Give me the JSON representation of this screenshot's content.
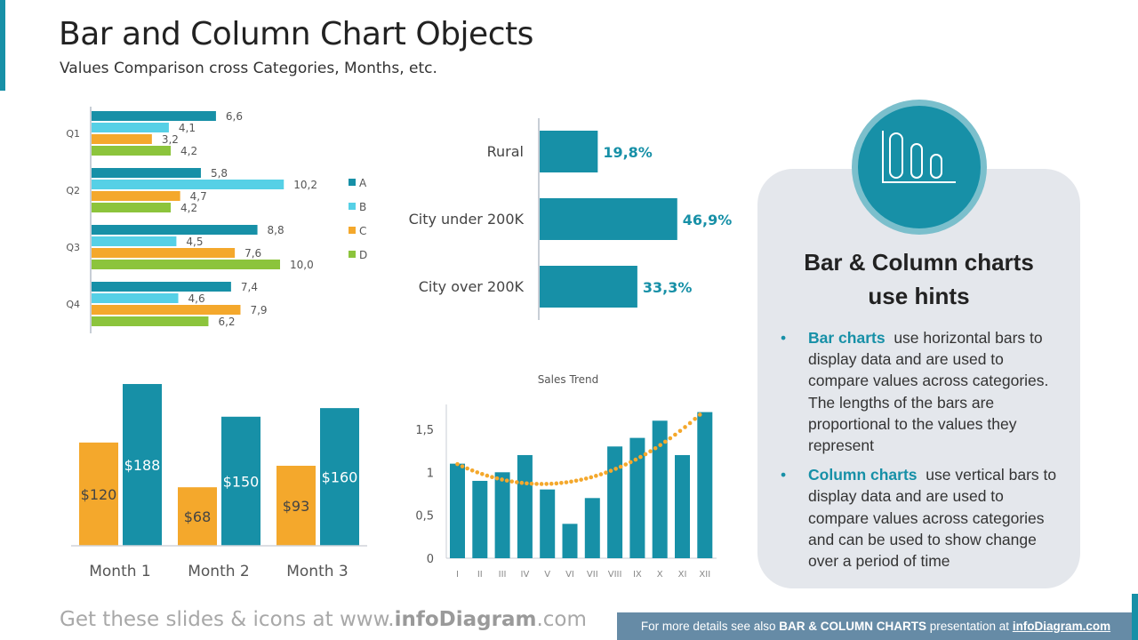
{
  "header": {
    "title": "Bar and Column Chart Objects",
    "subtitle": "Values Comparison cross Categories, Months, etc."
  },
  "colors": {
    "teal": "#1790a7",
    "light_blue": "#56d0e6",
    "orange": "#f4a82c",
    "green": "#8cc43c",
    "panel": "#e4e7ec",
    "footer": "#668ba6"
  },
  "hints": {
    "icon": "bar-chart-icon",
    "title_line1": "Bar & Column charts",
    "title_line2": "use hints",
    "items": [
      {
        "term": "Bar charts",
        "text": "use horizontal bars to display data and are used to compare values across categories. The lengths of the bars are proportional to the values they represent"
      },
      {
        "term": "Column charts",
        "text": "use vertical bars to display data and are used to compare values across categories and can be used to show change over a period of time"
      }
    ]
  },
  "footer": {
    "left_prefix": "Get these slides & icons at www.",
    "left_brand": "infoDiagram",
    "left_suffix": ".com",
    "right_prefix": "For more details see also ",
    "right_bold": "BAR & COLUMN CHARTS",
    "right_mid": " presentation at ",
    "right_link": "infoDiagram.com"
  },
  "chart_data": [
    {
      "type": "bar",
      "orientation": "horizontal",
      "categories": [
        "Q1",
        "Q2",
        "Q3",
        "Q4"
      ],
      "series": [
        {
          "name": "A",
          "values": [
            6.6,
            5.8,
            8.8,
            7.4
          ],
          "color": "#1790a7"
        },
        {
          "name": "B",
          "values": [
            4.1,
            10.2,
            4.5,
            4.6
          ],
          "color": "#56d0e6"
        },
        {
          "name": "C",
          "values": [
            3.2,
            4.7,
            7.6,
            7.9
          ],
          "color": "#f4a82c"
        },
        {
          "name": "D",
          "values": [
            4.2,
            4.2,
            10.0,
            6.2
          ],
          "color": "#8cc43c"
        }
      ],
      "labels": [
        [
          "6,6",
          "5,8",
          "8,8",
          "7,4"
        ],
        [
          "4,1",
          "10,2",
          "4,5",
          "4,6"
        ],
        [
          "3,2",
          "4,7",
          "7,6",
          "7,9"
        ],
        [
          "4,2",
          "4,2",
          "10,0",
          "6,2"
        ]
      ],
      "legend": "right",
      "grid": false
    },
    {
      "type": "bar",
      "orientation": "horizontal",
      "categories": [
        "Rural",
        "City under 200K",
        "City over 200K"
      ],
      "values": [
        19.8,
        46.9,
        33.3
      ],
      "labels": [
        "19,8%",
        "46,9%",
        "33,3%"
      ],
      "unit": "%",
      "grid": false
    },
    {
      "type": "bar",
      "orientation": "vertical",
      "categories": [
        "Month 1",
        "Month 2",
        "Month 3"
      ],
      "series": [
        {
          "values": [
            120,
            68,
            93
          ],
          "color": "#f4a82c",
          "labels": [
            "$120",
            "$68",
            "$93"
          ]
        },
        {
          "values": [
            188,
            150,
            160
          ],
          "color": "#1790a7",
          "labels": [
            "$188",
            "$150",
            "$160"
          ]
        }
      ],
      "grid": false
    },
    {
      "type": "bar",
      "orientation": "vertical",
      "title": "Sales Trend",
      "categories": [
        "I",
        "II",
        "III",
        "IV",
        "V",
        "VI",
        "VII",
        "VIII",
        "IX",
        "X",
        "XI",
        "XII"
      ],
      "values": [
        1.1,
        0.9,
        1.0,
        1.2,
        0.8,
        0.4,
        0.7,
        1.3,
        1.4,
        1.6,
        1.2,
        1.7
      ],
      "ylim": [
        0,
        1.8
      ],
      "yticks": [
        "0",
        "0,5",
        "1",
        "1,5"
      ],
      "ytick_values": [
        0,
        0.5,
        1,
        1.5
      ],
      "trendline": "polynomial order 2, dotted orange",
      "grid": false
    }
  ]
}
